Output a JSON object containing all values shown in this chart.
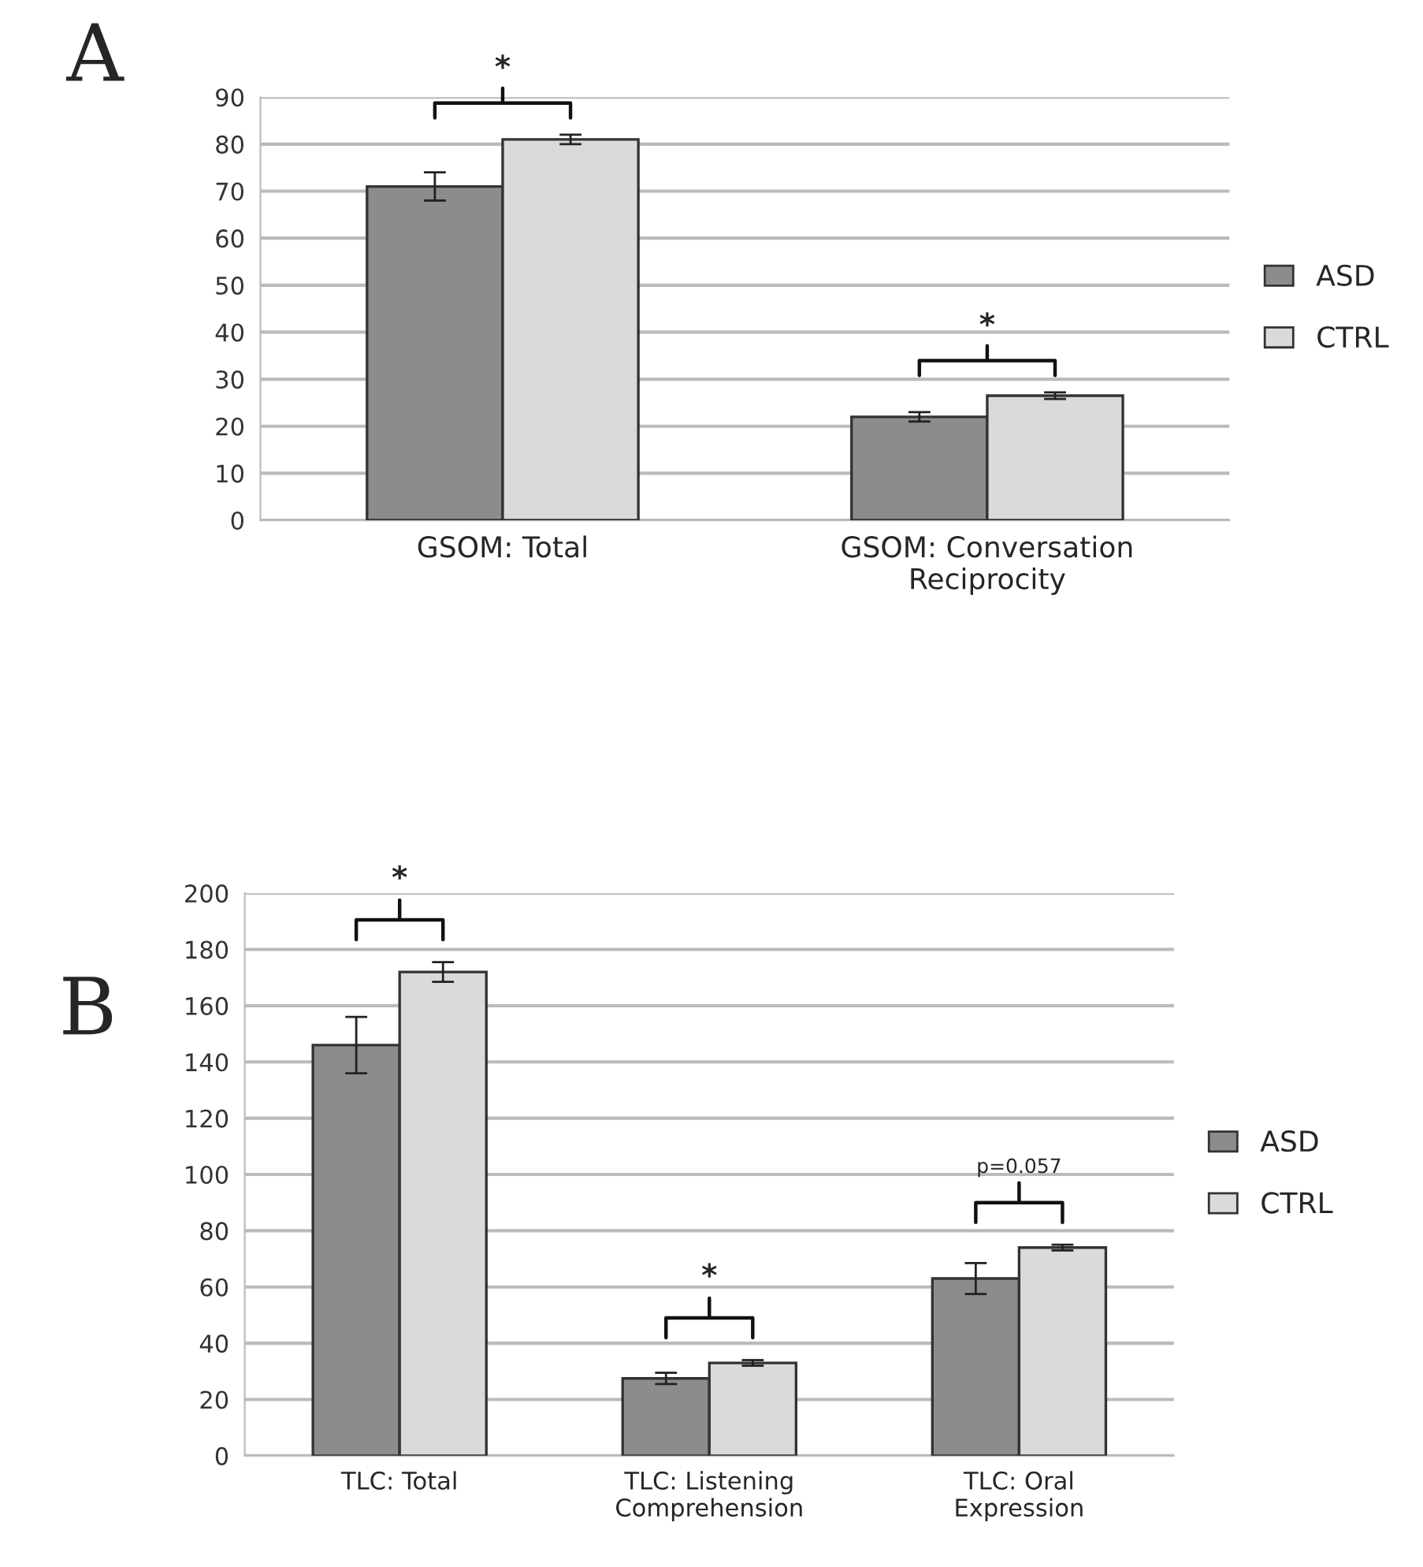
{
  "chart_data": [
    {
      "type": "bar",
      "title": "A",
      "categories": [
        "GSOM: Total",
        "GSOM: Conversation Reciprocity"
      ],
      "series": [
        {
          "name": "ASD",
          "color": "#8c8c8c",
          "values": [
            71,
            22
          ],
          "errors": [
            3,
            1
          ]
        },
        {
          "name": "CTRL",
          "color": "#dadada",
          "values": [
            81,
            26.5
          ],
          "errors": [
            1,
            0.7
          ]
        }
      ],
      "ylim": [
        0,
        90
      ],
      "yticks": [
        0,
        10,
        20,
        30,
        40,
        50,
        60,
        70,
        80,
        90
      ],
      "grid": "y",
      "legend": "right",
      "annotations": [
        "*",
        "*"
      ]
    },
    {
      "type": "bar",
      "title": "B",
      "categories": [
        "TLC: Total",
        "TLC: Listening Comprehension",
        "TLC: Oral Expression"
      ],
      "series": [
        {
          "name": "ASD",
          "color": "#8c8c8c",
          "values": [
            146,
            27.5,
            63
          ],
          "errors": [
            10,
            2,
            5.5
          ]
        },
        {
          "name": "CTRL",
          "color": "#dadada",
          "values": [
            172,
            33,
            74
          ],
          "errors": [
            3.5,
            1,
            1
          ]
        }
      ],
      "ylim": [
        0,
        200
      ],
      "yticks": [
        0,
        20,
        40,
        60,
        80,
        100,
        120,
        140,
        160,
        180,
        200
      ],
      "grid": "y",
      "legend": "right",
      "annotations": [
        "*",
        "*",
        "p=0.057"
      ]
    }
  ]
}
